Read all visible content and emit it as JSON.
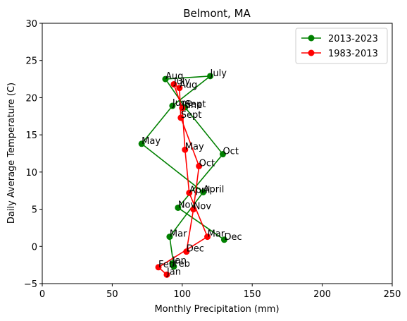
{
  "chart_data": {
    "type": "line",
    "title": "Belmont, MA",
    "xlabel": "Monthly Precipitation (mm)",
    "ylabel": "Daily Average Temperature (C)",
    "xlim": [
      0,
      250
    ],
    "ylim": [
      -5,
      30
    ],
    "xticks": [
      "0",
      "50",
      "100",
      "150",
      "200",
      "250"
    ],
    "yticks": [
      "−5",
      "0",
      "5",
      "10",
      "15",
      "20",
      "25",
      "30"
    ],
    "grid": false,
    "legend_position": "top-right",
    "series": [
      {
        "name": "2013-2023",
        "color": "#008000",
        "marker": "circle",
        "points": [
          {
            "label": "Jan",
            "x": 93,
            "y": -2.3
          },
          {
            "label": "Feb",
            "x": 94,
            "y": -2.7
          },
          {
            "label": "Mar",
            "x": 91,
            "y": 1.3
          },
          {
            "label": "April",
            "x": 115,
            "y": 7.3
          },
          {
            "label": "May",
            "x": 71,
            "y": 13.8
          },
          {
            "label": "June",
            "x": 93,
            "y": 18.9
          },
          {
            "label": "July",
            "x": 120,
            "y": 22.9
          },
          {
            "label": "Aug",
            "x": 88,
            "y": 22.5
          },
          {
            "label": "Sept",
            "x": 102,
            "y": 18.7
          },
          {
            "label": "Oct",
            "x": 129,
            "y": 12.4
          },
          {
            "label": "Nov",
            "x": 97,
            "y": 5.2
          },
          {
            "label": "Dec",
            "x": 130,
            "y": 0.9
          }
        ]
      },
      {
        "name": "1983-2013",
        "color": "#ff0000",
        "marker": "circle",
        "points": [
          {
            "label": "Jan",
            "x": 89,
            "y": -3.8
          },
          {
            "label": "Feb",
            "x": 83,
            "y": -2.8
          },
          {
            "label": "Mar",
            "x": 118,
            "y": 1.3
          },
          {
            "label": "April",
            "x": 105,
            "y": 7.2
          },
          {
            "label": "May",
            "x": 102,
            "y": 13.0
          },
          {
            "label": "June",
            "x": 100,
            "y": 18.6
          },
          {
            "label": "July",
            "x": 94,
            "y": 21.8
          },
          {
            "label": "Aug",
            "x": 98,
            "y": 21.3
          },
          {
            "label": "Sept",
            "x": 99,
            "y": 17.3
          },
          {
            "label": "Oct",
            "x": 112,
            "y": 10.8
          },
          {
            "label": "Nov",
            "x": 108,
            "y": 5.0
          },
          {
            "label": "Dec",
            "x": 103,
            "y": -0.7
          }
        ]
      }
    ]
  }
}
